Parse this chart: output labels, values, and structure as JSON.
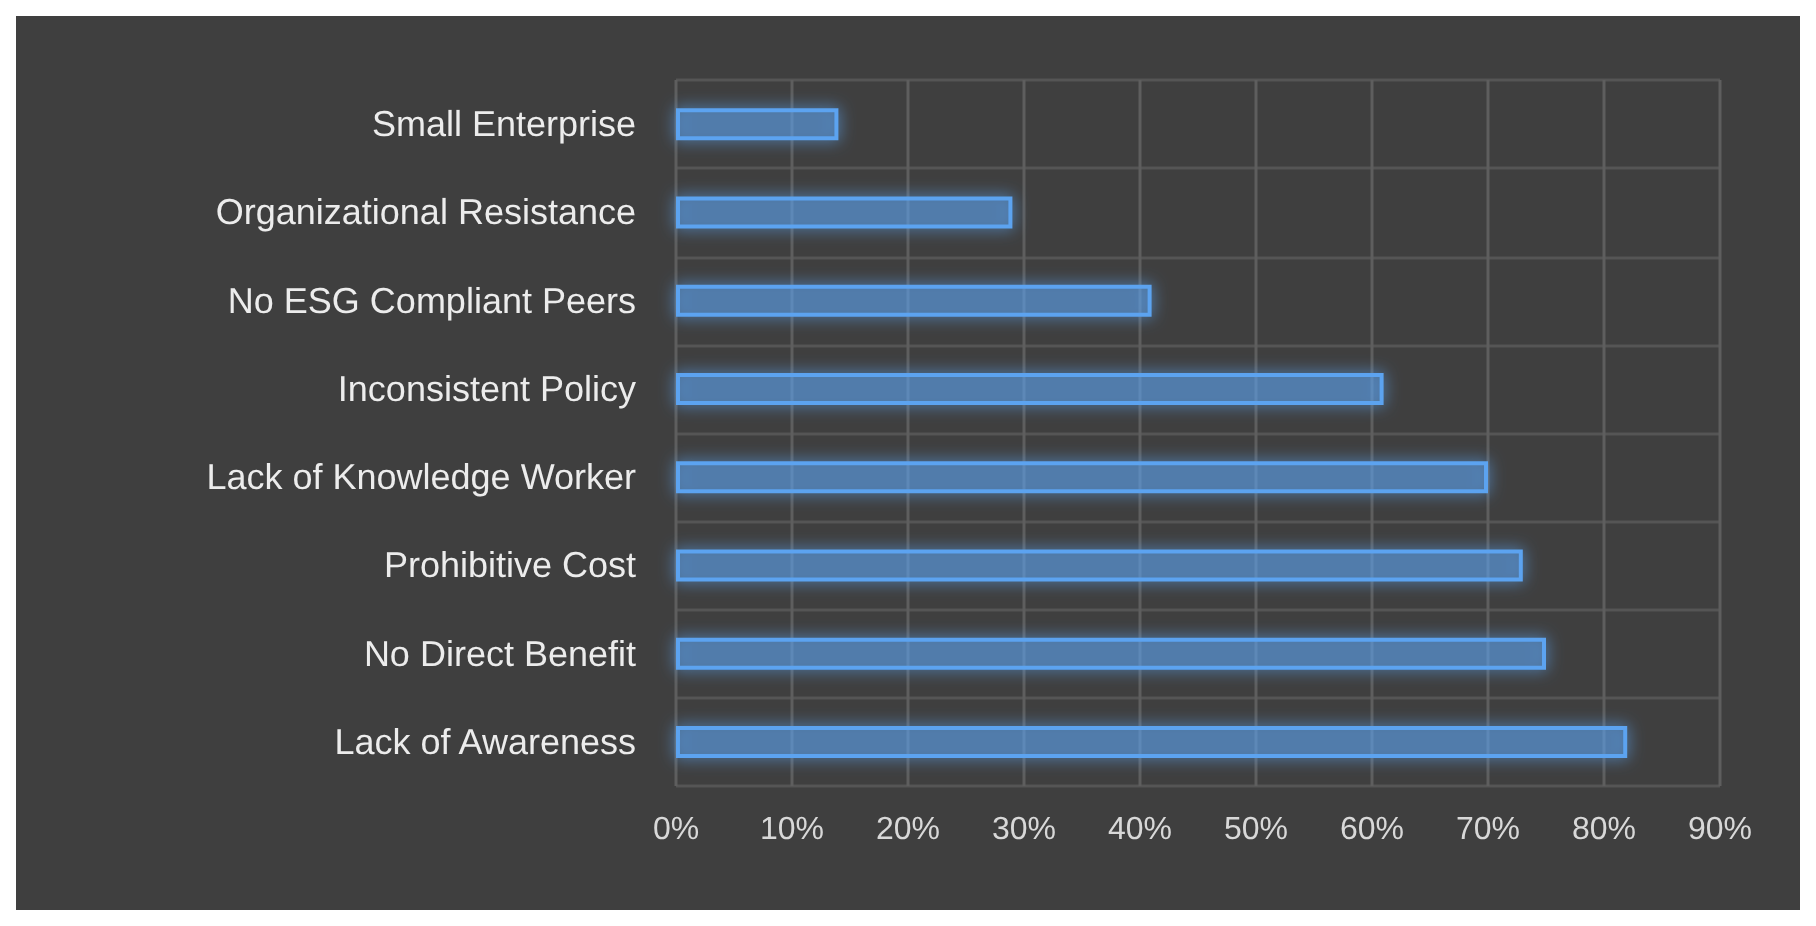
{
  "chart_data": {
    "type": "bar",
    "orientation": "horizontal",
    "categories": [
      "Small Enterprise",
      "Organizational Resistance",
      "No ESG Compliant Peers",
      "Inconsistent Policy",
      "Lack of Knowledge Worker",
      "Prohibitive Cost",
      "No Direct Benefit",
      "Lack of Awareness"
    ],
    "values": [
      14,
      29,
      41,
      61,
      70,
      73,
      75,
      82
    ],
    "color": "#5ba3f0",
    "xlim": [
      0,
      90
    ],
    "xticks": [
      {
        "value": 0,
        "label": "0%"
      },
      {
        "value": 10,
        "label": "10%"
      },
      {
        "value": 20,
        "label": "20%"
      },
      {
        "value": 30,
        "label": "30%"
      },
      {
        "value": 40,
        "label": "40%"
      },
      {
        "value": 50,
        "label": "50%"
      },
      {
        "value": 60,
        "label": "60%"
      },
      {
        "value": 70,
        "label": "70%"
      },
      {
        "value": 80,
        "label": "80%"
      },
      {
        "value": 90,
        "label": "90%"
      }
    ],
    "grid": true
  }
}
